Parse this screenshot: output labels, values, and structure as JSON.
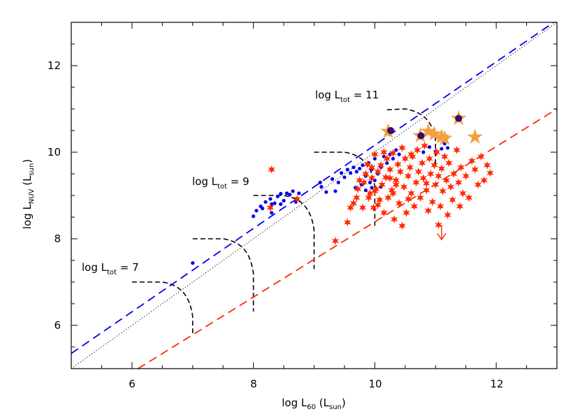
{
  "chart_data": {
    "type": "scatter",
    "xlabel": {
      "main": "log L",
      "sub": "60",
      "unit_open": " (L",
      "unit_sub": "sun",
      "unit_close": ")"
    },
    "ylabel": {
      "main": "log L",
      "sub": "NUV",
      "unit_open": " (L",
      "unit_sub": "sun",
      "unit_close": ")"
    },
    "xlim": [
      5,
      13
    ],
    "ylim": [
      5,
      13
    ],
    "xticks": [
      "6",
      "8",
      "10",
      "12"
    ],
    "yticks": [
      "6",
      "8",
      "10",
      "12"
    ],
    "annotations": [
      {
        "main": "log L",
        "sub": "tot",
        "rest": " = 7"
      },
      {
        "main": "log L",
        "sub": "tot",
        "rest": " = 9"
      },
      {
        "main": "log L",
        "sub": "tot",
        "rest": " = 11"
      }
    ],
    "colors": {
      "blue_points": "#0000ee",
      "red_stars": "#ff2a00",
      "orange_stars": "#f5a040",
      "navy_circles": "#3a0a6a",
      "blue_line": "#0000ee",
      "red_line": "#ff2a00",
      "axis": "#000000"
    },
    "lines": [
      {
        "name": "blue-dashed",
        "color": "#0000ee",
        "dash": "dashed",
        "points": [
          [
            5,
            5.35
          ],
          [
            13,
            13.05
          ]
        ]
      },
      {
        "name": "dotted-one-to-one",
        "color": "#000000",
        "dash": "dotted",
        "points": [
          [
            5,
            5.0
          ],
          [
            13,
            13.0
          ]
        ]
      },
      {
        "name": "red-dashed",
        "color": "#ff2a00",
        "dash": "dashed",
        "points": [
          [
            6.1,
            5.0
          ],
          [
            13,
            11.0
          ]
        ]
      }
    ],
    "curves": [
      {
        "points": [
          [
            6.0,
            7.0
          ],
          [
            6.5,
            7.0
          ],
          [
            6.8,
            6.93
          ],
          [
            6.95,
            6.7
          ],
          [
            7.0,
            6.2
          ],
          [
            7.0,
            5.82
          ]
        ]
      },
      {
        "points": [
          [
            7.0,
            8.0
          ],
          [
            7.5,
            8.0
          ],
          [
            7.8,
            7.93
          ],
          [
            7.95,
            7.7
          ],
          [
            8.0,
            7.2
          ],
          [
            8.0,
            6.32
          ]
        ]
      },
      {
        "points": [
          [
            8.0,
            9.0
          ],
          [
            8.5,
            9.0
          ],
          [
            8.8,
            8.93
          ],
          [
            8.95,
            8.7
          ],
          [
            9.0,
            8.2
          ],
          [
            9.0,
            7.3
          ]
        ]
      },
      {
        "points": [
          [
            9.0,
            10.0
          ],
          [
            9.5,
            10.0
          ],
          [
            9.8,
            9.93
          ],
          [
            9.95,
            9.7
          ],
          [
            10.0,
            9.2
          ],
          [
            10.0,
            8.3
          ]
        ]
      },
      {
        "points": [
          [
            10.2,
            10.98
          ],
          [
            10.5,
            11.0
          ],
          [
            10.8,
            10.93
          ],
          [
            10.95,
            10.7
          ],
          [
            11.0,
            10.3
          ],
          [
            11.0,
            9.7
          ]
        ]
      }
    ],
    "series": [
      {
        "marker": "dot",
        "color": "#0000ee",
        "points": [
          [
            7.0,
            7.44
          ],
          [
            8.0,
            8.52
          ],
          [
            8.05,
            8.65
          ],
          [
            8.12,
            8.75
          ],
          [
            8.15,
            8.7
          ],
          [
            8.2,
            8.85
          ],
          [
            8.28,
            8.92
          ],
          [
            8.3,
            8.6
          ],
          [
            8.35,
            8.82
          ],
          [
            8.4,
            8.98
          ],
          [
            8.45,
            9.04
          ],
          [
            8.5,
            8.88
          ],
          [
            8.55,
            9.05
          ],
          [
            8.6,
            9.02
          ],
          [
            8.65,
            9.1
          ],
          [
            8.7,
            8.85
          ],
          [
            8.75,
            9.05
          ],
          [
            8.3,
            8.8
          ],
          [
            8.45,
            8.8
          ],
          [
            9.1,
            9.3
          ],
          [
            9.12,
            9.2
          ],
          [
            9.2,
            9.08
          ],
          [
            9.3,
            9.38
          ],
          [
            9.35,
            9.1
          ],
          [
            9.4,
            9.3
          ],
          [
            9.45,
            9.52
          ],
          [
            9.5,
            9.42
          ],
          [
            9.55,
            9.6
          ],
          [
            9.6,
            9.52
          ],
          [
            9.65,
            9.65
          ],
          [
            9.7,
            9.55
          ],
          [
            9.75,
            9.62
          ],
          [
            9.8,
            9.7
          ],
          [
            9.85,
            9.45
          ],
          [
            9.9,
            9.75
          ],
          [
            9.92,
            9.3
          ],
          [
            9.95,
            9.6
          ],
          [
            10.0,
            9.85
          ],
          [
            10.05,
            9.5
          ],
          [
            10.1,
            9.65
          ],
          [
            10.15,
            9.9
          ],
          [
            10.2,
            9.75
          ],
          [
            10.25,
            9.95
          ],
          [
            10.3,
            9.85
          ],
          [
            10.35,
            10.05
          ],
          [
            10.4,
            9.95
          ],
          [
            9.95,
            9.18
          ],
          [
            9.85,
            9.12
          ],
          [
            10.0,
            9.35
          ],
          [
            10.1,
            9.2
          ],
          [
            10.8,
            10.0
          ],
          [
            10.9,
            10.12
          ],
          [
            11.0,
            10.02
          ],
          [
            11.1,
            10.08
          ],
          [
            11.15,
            10.2
          ],
          [
            11.2,
            10.1
          ],
          [
            10.7,
            10.05
          ],
          [
            9.78,
            9.25
          ],
          [
            9.68,
            9.18
          ]
        ]
      },
      {
        "marker": "star6",
        "color": "#ff2a00",
        "points": [
          [
            8.3,
            9.6
          ],
          [
            8.28,
            8.72
          ],
          [
            8.72,
            8.92
          ],
          [
            9.35,
            7.95
          ],
          [
            9.55,
            8.38
          ],
          [
            9.6,
            8.72
          ],
          [
            9.65,
            8.82
          ],
          [
            9.72,
            9.15
          ],
          [
            9.8,
            8.72
          ],
          [
            9.82,
            9.3
          ],
          [
            9.85,
            9.5
          ],
          [
            9.88,
            9.72
          ],
          [
            9.9,
            8.95
          ],
          [
            9.92,
            9.05
          ],
          [
            9.95,
            9.4
          ],
          [
            9.98,
            8.72
          ],
          [
            10.0,
            9.95
          ],
          [
            10.02,
            9.15
          ],
          [
            10.05,
            9.55
          ],
          [
            10.08,
            8.9
          ],
          [
            10.1,
            9.7
          ],
          [
            10.12,
            9.25
          ],
          [
            10.15,
            8.6
          ],
          [
            10.18,
            9.42
          ],
          [
            10.2,
            9.85
          ],
          [
            10.22,
            8.95
          ],
          [
            10.25,
            9.6
          ],
          [
            10.28,
            9.12
          ],
          [
            10.3,
            9.98
          ],
          [
            10.32,
            8.45
          ],
          [
            10.35,
            9.35
          ],
          [
            10.38,
            9.72
          ],
          [
            10.4,
            8.82
          ],
          [
            10.42,
            9.55
          ],
          [
            10.45,
            10.1
          ],
          [
            10.48,
            9.2
          ],
          [
            10.5,
            9.85
          ],
          [
            10.52,
            8.6
          ],
          [
            10.55,
            9.45
          ],
          [
            10.58,
            9.65
          ],
          [
            10.6,
            9.05
          ],
          [
            10.62,
            9.9
          ],
          [
            10.65,
            8.75
          ],
          [
            10.68,
            9.3
          ],
          [
            10.7,
            10.05
          ],
          [
            10.72,
            9.55
          ],
          [
            10.75,
            8.95
          ],
          [
            10.78,
            9.75
          ],
          [
            10.8,
            9.4
          ],
          [
            10.82,
            10.15
          ],
          [
            10.85,
            9.12
          ],
          [
            10.88,
            8.65
          ],
          [
            10.9,
            9.85
          ],
          [
            10.92,
            9.5
          ],
          [
            10.95,
            8.85
          ],
          [
            10.98,
            9.7
          ],
          [
            11.0,
            9.25
          ],
          [
            11.02,
            10.0
          ],
          [
            11.05,
            9.45
          ],
          [
            11.08,
            8.75
          ],
          [
            11.1,
            9.62
          ],
          [
            11.12,
            9.1
          ],
          [
            11.15,
            9.9
          ],
          [
            11.18,
            9.35
          ],
          [
            11.2,
            8.55
          ],
          [
            11.22,
            9.75
          ],
          [
            11.25,
            9.2
          ],
          [
            11.28,
            8.9
          ],
          [
            11.3,
            9.5
          ],
          [
            11.35,
            10.05
          ],
          [
            11.38,
            9.3
          ],
          [
            11.4,
            8.75
          ],
          [
            11.42,
            9.65
          ],
          [
            11.45,
            9.05
          ],
          [
            11.5,
            9.45
          ],
          [
            11.55,
            8.95
          ],
          [
            11.6,
            9.8
          ],
          [
            11.65,
            9.6
          ],
          [
            11.7,
            9.25
          ],
          [
            11.75,
            9.9
          ],
          [
            11.8,
            9.35
          ],
          [
            11.85,
            9.7
          ],
          [
            11.9,
            9.52
          ],
          [
            10.0,
            9.1
          ],
          [
            9.7,
            8.95
          ],
          [
            9.75,
            9.35
          ],
          [
            10.3,
            9.05
          ],
          [
            10.45,
            8.3
          ],
          [
            11.05,
            8.32
          ],
          [
            10.15,
            10.0
          ],
          [
            10.35,
            9.25
          ],
          [
            10.6,
            9.95
          ],
          [
            10.05,
            8.78
          ],
          [
            9.95,
            9.65
          ],
          [
            10.25,
            9.4
          ],
          [
            10.55,
            8.92
          ],
          [
            10.85,
            9.28
          ]
        ]
      },
      {
        "marker": "star5-large",
        "color": "#f5a040",
        "points": [
          [
            10.22,
            10.48
          ],
          [
            10.75,
            10.38
          ],
          [
            10.88,
            10.48
          ],
          [
            10.98,
            10.42
          ],
          [
            11.1,
            10.35
          ],
          [
            11.15,
            10.32
          ],
          [
            11.38,
            10.78
          ],
          [
            11.65,
            10.35
          ]
        ]
      },
      {
        "marker": "circle",
        "color": "#3a0a6a",
        "points": [
          [
            10.26,
            10.5
          ],
          [
            10.76,
            10.38
          ],
          [
            11.38,
            10.78
          ]
        ]
      }
    ],
    "upper_limit_arrow": {
      "x": 11.1,
      "y": 8.32,
      "to": 7.98,
      "color": "#ff2a00"
    }
  }
}
